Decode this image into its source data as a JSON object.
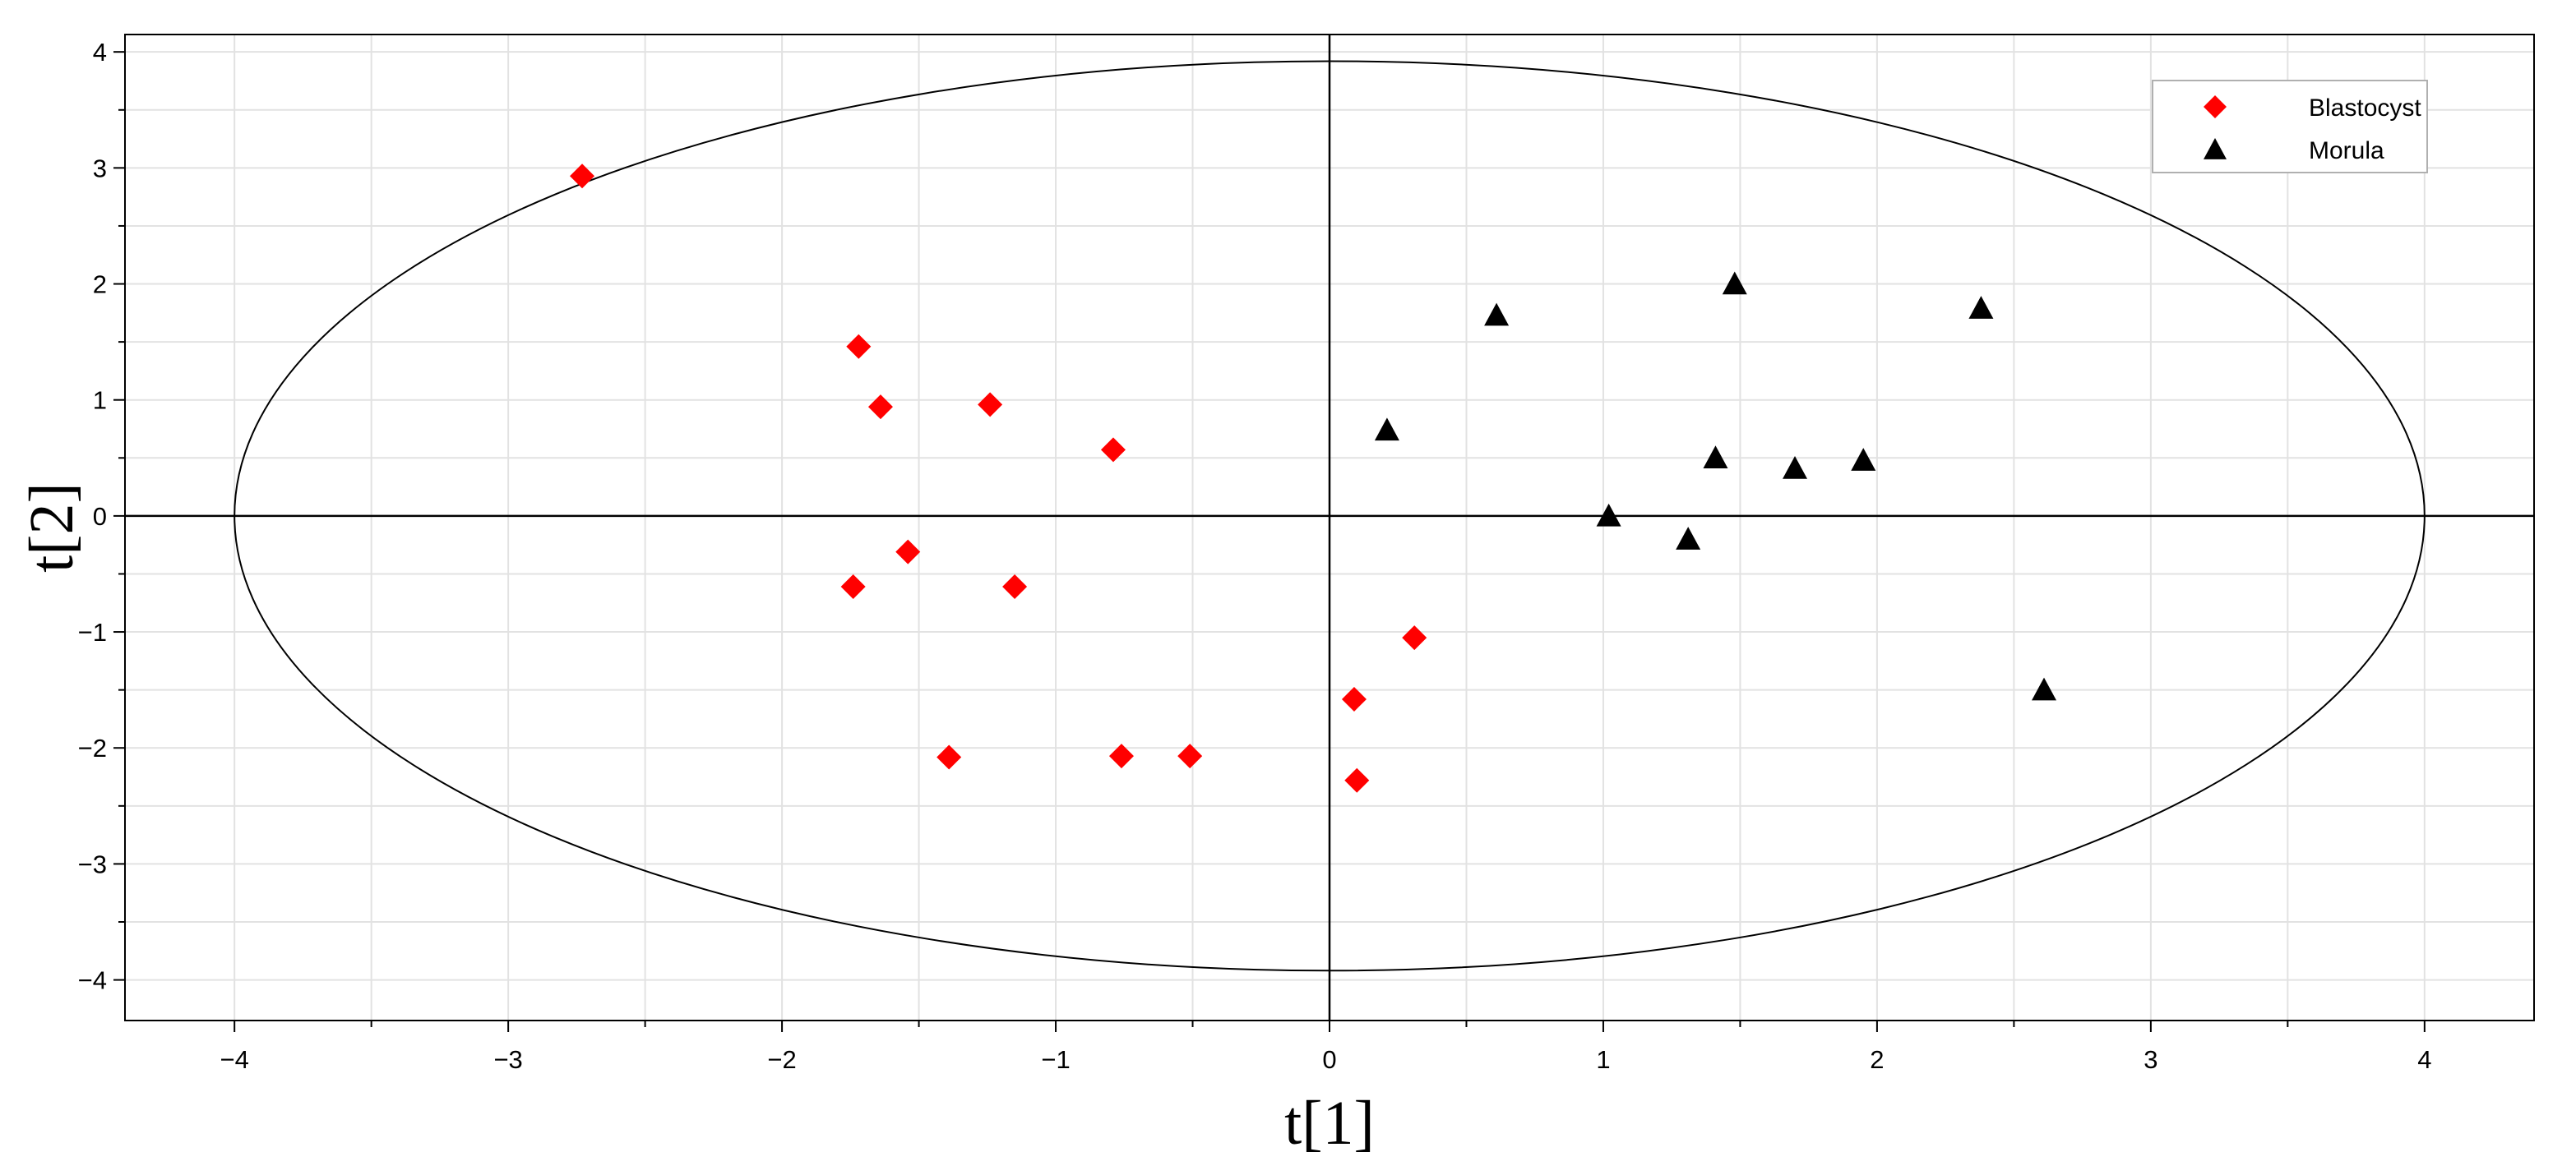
{
  "chart_data": {
    "type": "scatter",
    "title": "",
    "xlabel": "t[1]",
    "ylabel": "t[2]",
    "xlim": [
      -4.4,
      4.4
    ],
    "ylim": [
      -4.35,
      4.15
    ],
    "xticks": [
      -4,
      -3,
      -2,
      -1,
      0,
      1,
      2,
      3,
      4
    ],
    "yticks": [
      -4,
      -3,
      -2,
      -1,
      0,
      1,
      2,
      3,
      4
    ],
    "xtick_labels": [
      "−4",
      "−3",
      "−2",
      "−1",
      "0",
      "1",
      "2",
      "3",
      "4"
    ],
    "ytick_labels": [
      "−4",
      "−3",
      "−2",
      "−1",
      "0",
      "1",
      "2",
      "3",
      "4"
    ],
    "grid": true,
    "legend_position": "top-right",
    "ellipse": {
      "rx": 4.0,
      "ry": 3.92
    },
    "series": [
      {
        "name": "Blastocyst",
        "marker": "diamond",
        "color": "#ff0000",
        "points": [
          [
            -2.73,
            2.93
          ],
          [
            -1.72,
            1.46
          ],
          [
            -1.64,
            0.94
          ],
          [
            -1.24,
            0.96
          ],
          [
            -0.79,
            0.57
          ],
          [
            -1.54,
            -0.31
          ],
          [
            -1.74,
            -0.61
          ],
          [
            -1.15,
            -0.61
          ],
          [
            0.31,
            -1.05
          ],
          [
            0.09,
            -1.58
          ],
          [
            -1.39,
            -2.08
          ],
          [
            -0.76,
            -2.07
          ],
          [
            -0.51,
            -2.07
          ],
          [
            0.1,
            -2.28
          ]
        ]
      },
      {
        "name": "Morula",
        "marker": "triangle",
        "color": "#000000",
        "points": [
          [
            1.48,
            2.0
          ],
          [
            2.38,
            1.79
          ],
          [
            0.61,
            1.73
          ],
          [
            0.21,
            0.74
          ],
          [
            1.41,
            0.5
          ],
          [
            1.7,
            0.41
          ],
          [
            1.95,
            0.48
          ],
          [
            1.02,
            0.0
          ],
          [
            1.31,
            -0.2
          ],
          [
            2.61,
            -1.5
          ]
        ]
      }
    ]
  }
}
